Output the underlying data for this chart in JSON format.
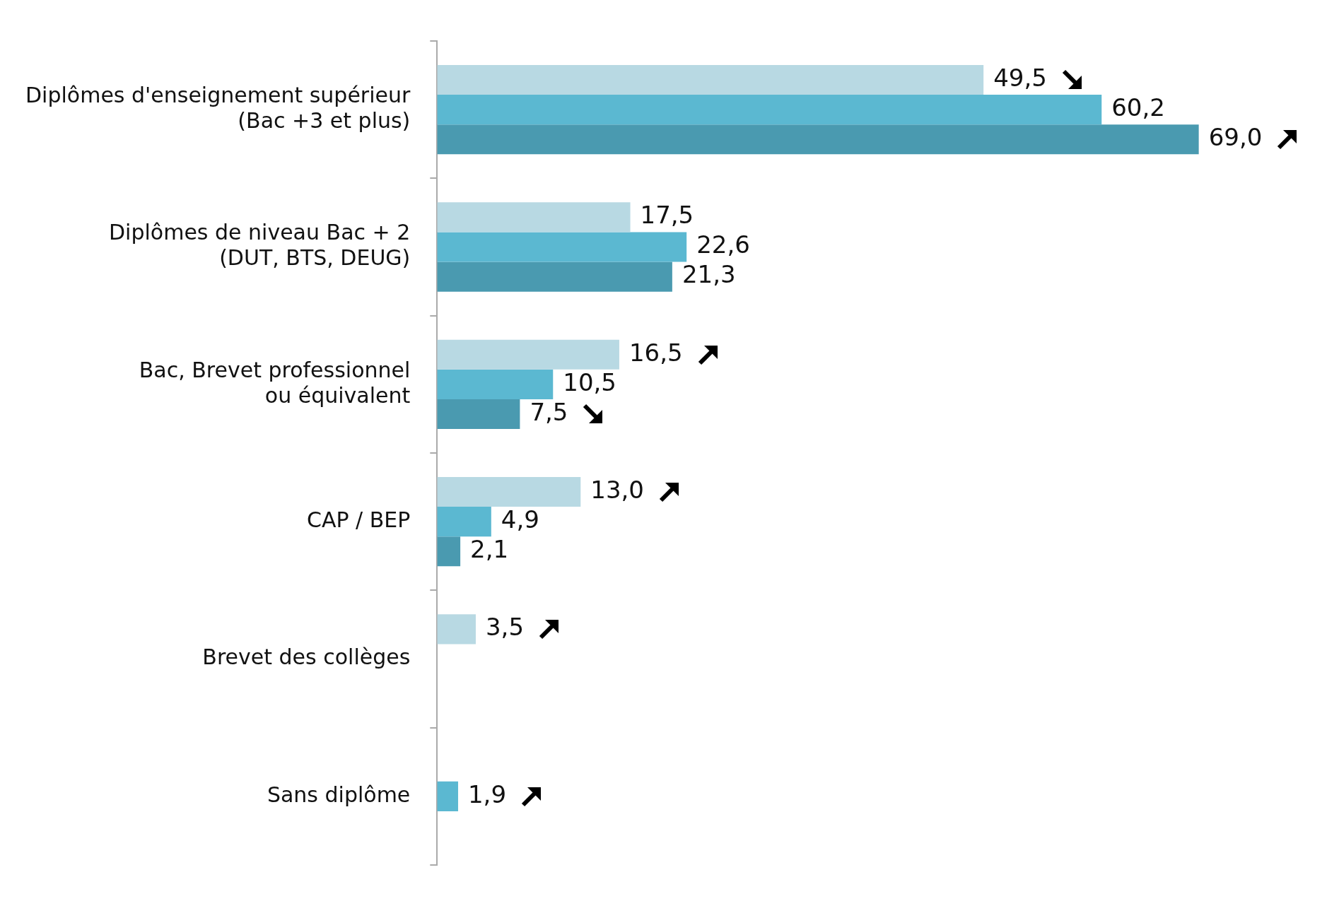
{
  "chart_data": {
    "type": "bar",
    "orientation": "horizontal",
    "categories": [
      "Diplômes d'enseignement supérieur\n(Bac +3 et plus)",
      "Diplômes de niveau Bac + 2\n(DUT, BTS, DEUG)",
      "Bac, Brevet professionnel\nou équivalent",
      "CAP / BEP",
      "Brevet des collèges",
      "Sans diplôme"
    ],
    "series": [
      {
        "color": "#b8d9e3",
        "values": [
          49.5,
          17.5,
          16.5,
          13.0,
          3.5,
          null
        ],
        "value_labels": [
          "49,5",
          "17,5",
          "16,5",
          "13,0",
          "3,5",
          null
        ]
      },
      {
        "color": "#5bb8d1",
        "values": [
          60.2,
          22.6,
          10.5,
          4.9,
          null,
          1.9
        ],
        "value_labels": [
          "60,2",
          "22,6",
          "10,5",
          "4,9",
          null,
          "1,9"
        ]
      },
      {
        "color": "#4a9ab0",
        "values": [
          69.0,
          21.3,
          7.5,
          2.1,
          null,
          null
        ],
        "value_labels": [
          "69,0",
          "21,3",
          "7,5",
          "2,1",
          null,
          null
        ]
      }
    ],
    "grid": false,
    "legend": false
  }
}
